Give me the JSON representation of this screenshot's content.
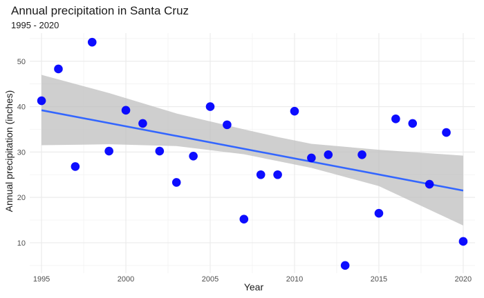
{
  "chart_data": {
    "type": "scatter",
    "title": "Annual precipitation in Santa Cruz",
    "subtitle": "1995 - 2020",
    "xlabel": "Year",
    "ylabel": "Annual precipitation (inches)",
    "xlim": [
      1994.3,
      2020.7
    ],
    "ylim": [
      3.3,
      56.2
    ],
    "x_ticks": [
      1995,
      2000,
      2005,
      2010,
      2015,
      2020
    ],
    "y_ticks": [
      10,
      20,
      30,
      40,
      50
    ],
    "grid": true,
    "point_color": "#0000ff",
    "trend_color": "#3366ff",
    "band_color": "#bfbfbf",
    "points": [
      {
        "x": 1995,
        "y": 41.3
      },
      {
        "x": 1996,
        "y": 48.3
      },
      {
        "x": 1997,
        "y": 26.8
      },
      {
        "x": 1998,
        "y": 54.2
      },
      {
        "x": 1999,
        "y": 30.2
      },
      {
        "x": 2000,
        "y": 39.2
      },
      {
        "x": 2001,
        "y": 36.3
      },
      {
        "x": 2002,
        "y": 30.2
      },
      {
        "x": 2003,
        "y": 23.3
      },
      {
        "x": 2004,
        "y": 29.1
      },
      {
        "x": 2005,
        "y": 40.0
      },
      {
        "x": 2006,
        "y": 36.0
      },
      {
        "x": 2007,
        "y": 15.2
      },
      {
        "x": 2008,
        "y": 25.0
      },
      {
        "x": 2009,
        "y": 25.0
      },
      {
        "x": 2010,
        "y": 39.0
      },
      {
        "x": 2011,
        "y": 28.7
      },
      {
        "x": 2012,
        "y": 29.4
      },
      {
        "x": 2013,
        "y": 5.0
      },
      {
        "x": 2014,
        "y": 29.4
      },
      {
        "x": 2015,
        "y": 16.5
      },
      {
        "x": 2016,
        "y": 37.3
      },
      {
        "x": 2017,
        "y": 36.3
      },
      {
        "x": 2018,
        "y": 22.9
      },
      {
        "x": 2019,
        "y": 34.3
      },
      {
        "x": 2020,
        "y": 10.3
      }
    ],
    "trend": {
      "x": [
        1995,
        2020
      ],
      "y": [
        39.2,
        21.5
      ]
    },
    "confidence_band": {
      "x": [
        1995,
        1999,
        2003,
        2007,
        2009,
        2011,
        2015,
        2020
      ],
      "lower": [
        31.5,
        31.7,
        31.3,
        29.5,
        28.0,
        26.5,
        22.5,
        13.8
      ],
      "upper": [
        47.0,
        43.0,
        38.5,
        35.0,
        33.3,
        31.8,
        30.5,
        29.2
      ]
    }
  }
}
